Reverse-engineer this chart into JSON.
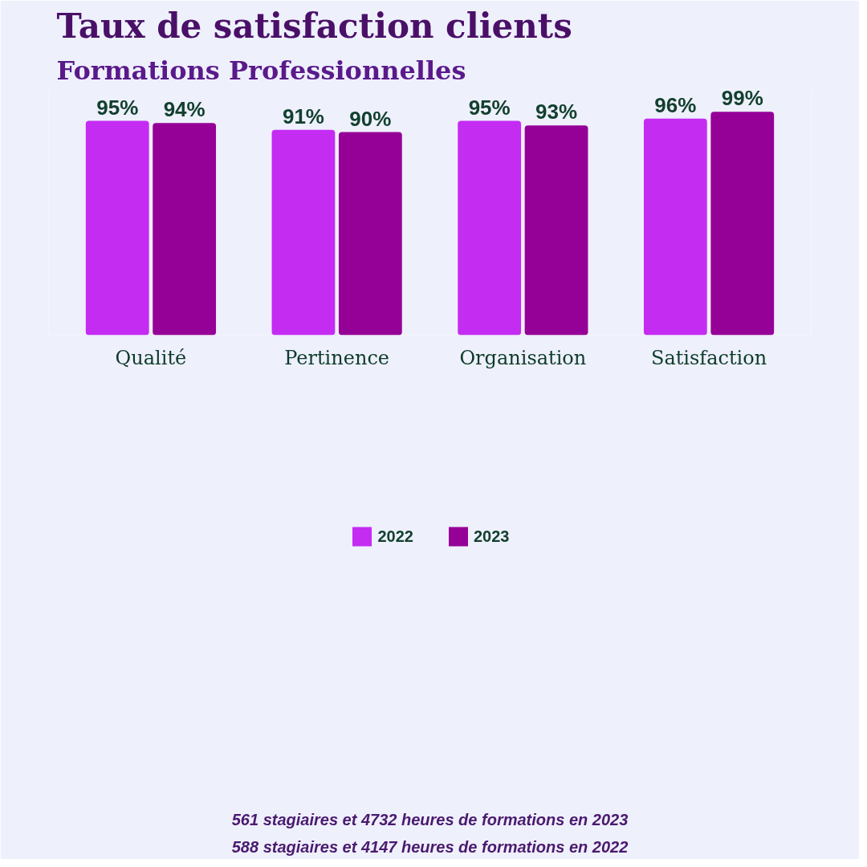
{
  "chart_data": {
    "type": "bar",
    "title": "Taux de satisfaction clients",
    "subtitle": "Formations Professionnelles",
    "categories": [
      "Qualité",
      "Pertinence",
      "Organisation",
      "Satisfaction"
    ],
    "series": [
      {
        "name": "2022",
        "color": "#c42cf2",
        "values": [
          95,
          91,
          95,
          96
        ],
        "value_labels": [
          "95%",
          "91%",
          "95%",
          "96%"
        ]
      },
      {
        "name": "2023",
        "color": "#950096",
        "values": [
          94,
          90,
          93,
          99
        ],
        "value_labels": [
          "94%",
          "90%",
          "93%",
          "99%"
        ]
      }
    ],
    "legend": "bottom",
    "grid": false,
    "tick_labels": "x",
    "annotations": [
      "561 stagiaires et 4732 heures de formations en 2023",
      "588 stagiaires et 4147 heures de formations en 2022"
    ]
  }
}
